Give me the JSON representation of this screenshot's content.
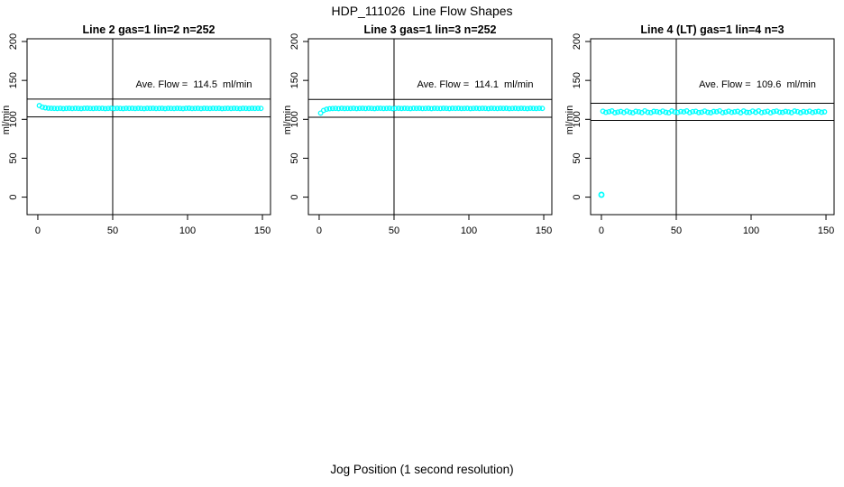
{
  "figure": {
    "title": "HDP_111026  Line Flow Shapes",
    "xlabel": "Jog Position (1 second resolution)",
    "background_color": "#ffffff",
    "axis_color": "#000000",
    "marker_color": "#00ffff"
  },
  "chart_data": [
    {
      "type": "scatter",
      "title": "Line 2 gas=1 lin=2 n=252",
      "ylabel": "ml/min",
      "annotation": "Ave. Flow =  114.5  ml/min",
      "ave_flow": 114.5,
      "n": 252,
      "marker": "open-circle",
      "marker_color": "#00ffff",
      "xticks": [
        0,
        50,
        100,
        150
      ],
      "yticks": [
        0,
        50,
        100,
        150,
        200
      ],
      "xlim": [
        -7.2,
        155.4
      ],
      "ylim": [
        -22.5,
        203.5
      ],
      "grid": false,
      "vline_x": 50,
      "ref_lines": [
        126.0,
        103.1
      ],
      "x": [
        1,
        3,
        5,
        7,
        9,
        11,
        13,
        15,
        17,
        19,
        21,
        23,
        25,
        27,
        29,
        31,
        33,
        35,
        37,
        39,
        41,
        43,
        45,
        47,
        49,
        51,
        53,
        55,
        57,
        59,
        61,
        63,
        65,
        67,
        69,
        71,
        73,
        75,
        77,
        79,
        81,
        83,
        85,
        87,
        89,
        91,
        93,
        95,
        97,
        99,
        101,
        103,
        105,
        107,
        109,
        111,
        113,
        115,
        117,
        119,
        121,
        123,
        125,
        127,
        129,
        131,
        133,
        135,
        137,
        139,
        141,
        143,
        145,
        147,
        149
      ],
      "y": [
        117.6,
        115.7,
        114.8,
        114.4,
        114.2,
        114.0,
        113.9,
        114.1,
        113.8,
        114.0,
        114.2,
        113.9,
        114.1,
        114.0,
        113.8,
        114.1,
        114.3,
        114.0,
        113.9,
        114.1,
        114.0,
        114.2,
        113.8,
        114.0,
        114.1,
        113.9,
        114.2,
        114.0,
        113.8,
        114.1,
        114.0,
        114.2,
        113.9,
        114.1,
        114.0,
        113.8,
        114.2,
        114.0,
        114.1,
        113.9,
        114.0,
        114.2,
        113.8,
        114.1,
        114.0,
        113.9,
        114.2,
        114.0,
        113.8,
        114.1,
        114.3,
        113.9,
        114.0,
        114.1,
        113.8,
        114.2,
        114.0,
        113.9,
        114.1,
        114.0,
        114.2,
        113.8,
        114.0,
        114.1,
        113.9,
        114.2,
        114.0,
        113.8,
        114.1,
        114.0,
        113.9,
        114.2,
        114.0,
        114.1,
        114.0
      ]
    },
    {
      "type": "scatter",
      "title": "Line 3 gas=1 lin=3 n=252",
      "ylabel": "ml/min",
      "annotation": "Ave. Flow =  114.1  ml/min",
      "ave_flow": 114.1,
      "n": 252,
      "marker": "open-circle",
      "marker_color": "#00ffff",
      "xticks": [
        0,
        50,
        100,
        150
      ],
      "yticks": [
        0,
        50,
        100,
        150,
        200
      ],
      "xlim": [
        -7.2,
        155.4
      ],
      "ylim": [
        -22.5,
        203.5
      ],
      "grid": false,
      "vline_x": 50,
      "ref_lines": [
        125.5,
        102.7
      ],
      "x": [
        1,
        3,
        5,
        7,
        9,
        11,
        13,
        15,
        17,
        19,
        21,
        23,
        25,
        27,
        29,
        31,
        33,
        35,
        37,
        39,
        41,
        43,
        45,
        47,
        49,
        51,
        53,
        55,
        57,
        59,
        61,
        63,
        65,
        67,
        69,
        71,
        73,
        75,
        77,
        79,
        81,
        83,
        85,
        87,
        89,
        91,
        93,
        95,
        97,
        99,
        101,
        103,
        105,
        107,
        109,
        111,
        113,
        115,
        117,
        119,
        121,
        123,
        125,
        127,
        129,
        131,
        133,
        135,
        137,
        139,
        141,
        143,
        145,
        147,
        149
      ],
      "y": [
        108.0,
        111.5,
        113.0,
        113.6,
        113.9,
        114.0,
        113.8,
        114.1,
        113.9,
        114.0,
        113.9,
        114.1,
        113.8,
        114.0,
        114.2,
        113.9,
        114.1,
        114.0,
        113.8,
        114.1,
        114.2,
        113.9,
        114.0,
        114.1,
        113.8,
        114.0,
        114.2,
        113.9,
        114.1,
        114.0,
        113.8,
        114.1,
        114.0,
        114.2,
        113.9,
        114.0,
        114.1,
        113.8,
        114.2,
        114.0,
        113.9,
        114.1,
        114.0,
        113.8,
        114.2,
        114.0,
        114.1,
        113.9,
        114.0,
        114.2,
        113.8,
        114.0,
        114.1,
        113.9,
        114.2,
        114.0,
        113.8,
        114.1,
        114.0,
        113.9,
        114.1,
        114.0,
        114.2,
        113.8,
        114.0,
        114.1,
        113.9,
        114.2,
        114.0,
        113.8,
        114.1,
        114.0,
        113.9,
        114.2,
        114.0
      ]
    },
    {
      "type": "scatter",
      "title": "Line 4 (LT) gas=1 lin=4 n=3",
      "ylabel": "ml/min",
      "annotation": "Ave. Flow =  109.6  ml/min",
      "ave_flow": 109.6,
      "n": 3,
      "marker": "open-circle",
      "marker_color": "#00ffff",
      "xticks": [
        0,
        50,
        100,
        150
      ],
      "yticks": [
        0,
        50,
        100,
        150,
        200
      ],
      "xlim": [
        -7.2,
        155.4
      ],
      "ylim": [
        -22.5,
        203.5
      ],
      "grid": false,
      "vline_x": 50,
      "ref_lines": [
        120.6,
        98.6
      ],
      "outlier": {
        "x": 0,
        "y": 3
      },
      "x": [
        1,
        3,
        5,
        7,
        9,
        11,
        13,
        15,
        17,
        19,
        21,
        23,
        25,
        27,
        29,
        31,
        33,
        35,
        37,
        39,
        41,
        43,
        45,
        47,
        49,
        51,
        53,
        55,
        57,
        59,
        61,
        63,
        65,
        67,
        69,
        71,
        73,
        75,
        77,
        79,
        81,
        83,
        85,
        87,
        89,
        91,
        93,
        95,
        97,
        99,
        101,
        103,
        105,
        107,
        109,
        111,
        113,
        115,
        117,
        119,
        121,
        123,
        125,
        127,
        129,
        131,
        133,
        135,
        137,
        139,
        141,
        143,
        145,
        147,
        149
      ],
      "y": [
        110.4,
        108.9,
        109.7,
        110.8,
        108.5,
        109.3,
        110.1,
        108.8,
        110.6,
        109.2,
        108.4,
        110.3,
        109.6,
        108.7,
        110.9,
        109.1,
        108.6,
        110.2,
        109.8,
        108.9,
        110.5,
        109.0,
        108.3,
        110.7,
        109.4,
        108.8,
        110.0,
        109.5,
        110.8,
        108.6,
        109.9,
        110.3,
        108.7,
        109.2,
        110.6,
        109.0,
        108.5,
        110.1,
        109.7,
        110.9,
        108.6,
        109.3,
        110.4,
        108.9,
        109.6,
        110.2,
        108.5,
        110.7,
        109.1,
        108.8,
        110.5,
        109.0,
        110.8,
        108.7,
        109.4,
        110.3,
        108.4,
        109.9,
        110.6,
        109.2,
        108.9,
        110.1,
        109.5,
        108.6,
        110.7,
        109.8,
        108.5,
        110.0,
        109.3,
        110.4,
        108.8,
        109.7,
        110.2,
        109.0,
        109.6
      ]
    }
  ]
}
